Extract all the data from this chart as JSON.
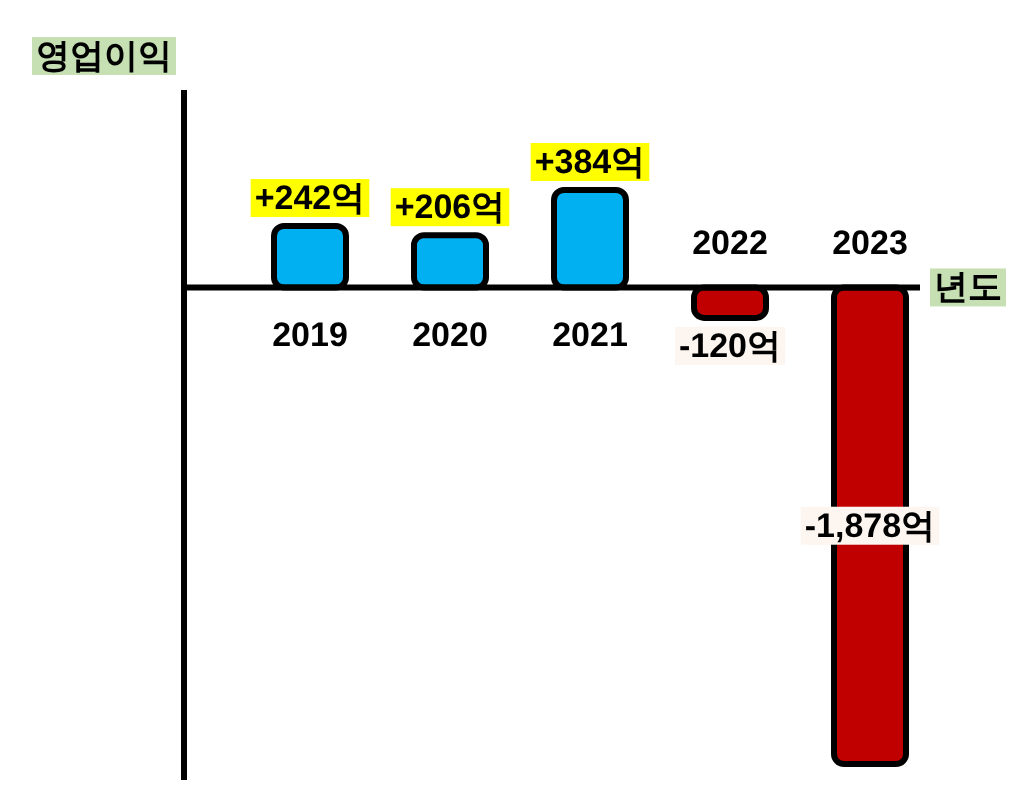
{
  "chart_data": {
    "type": "bar",
    "ylabel": "영업이익",
    "xlabel": "년도",
    "categories": [
      "2019",
      "2020",
      "2021",
      "2022",
      "2023"
    ],
    "values": [
      242,
      206,
      384,
      -120,
      -1878
    ],
    "colors": [
      "#00b0f0",
      "#00b0f0",
      "#00b0f0",
      "#c00000",
      "#c00000"
    ],
    "value_labels": [
      "+242억",
      "+206억",
      "+384억",
      "-120억",
      "-1,878억"
    ]
  }
}
